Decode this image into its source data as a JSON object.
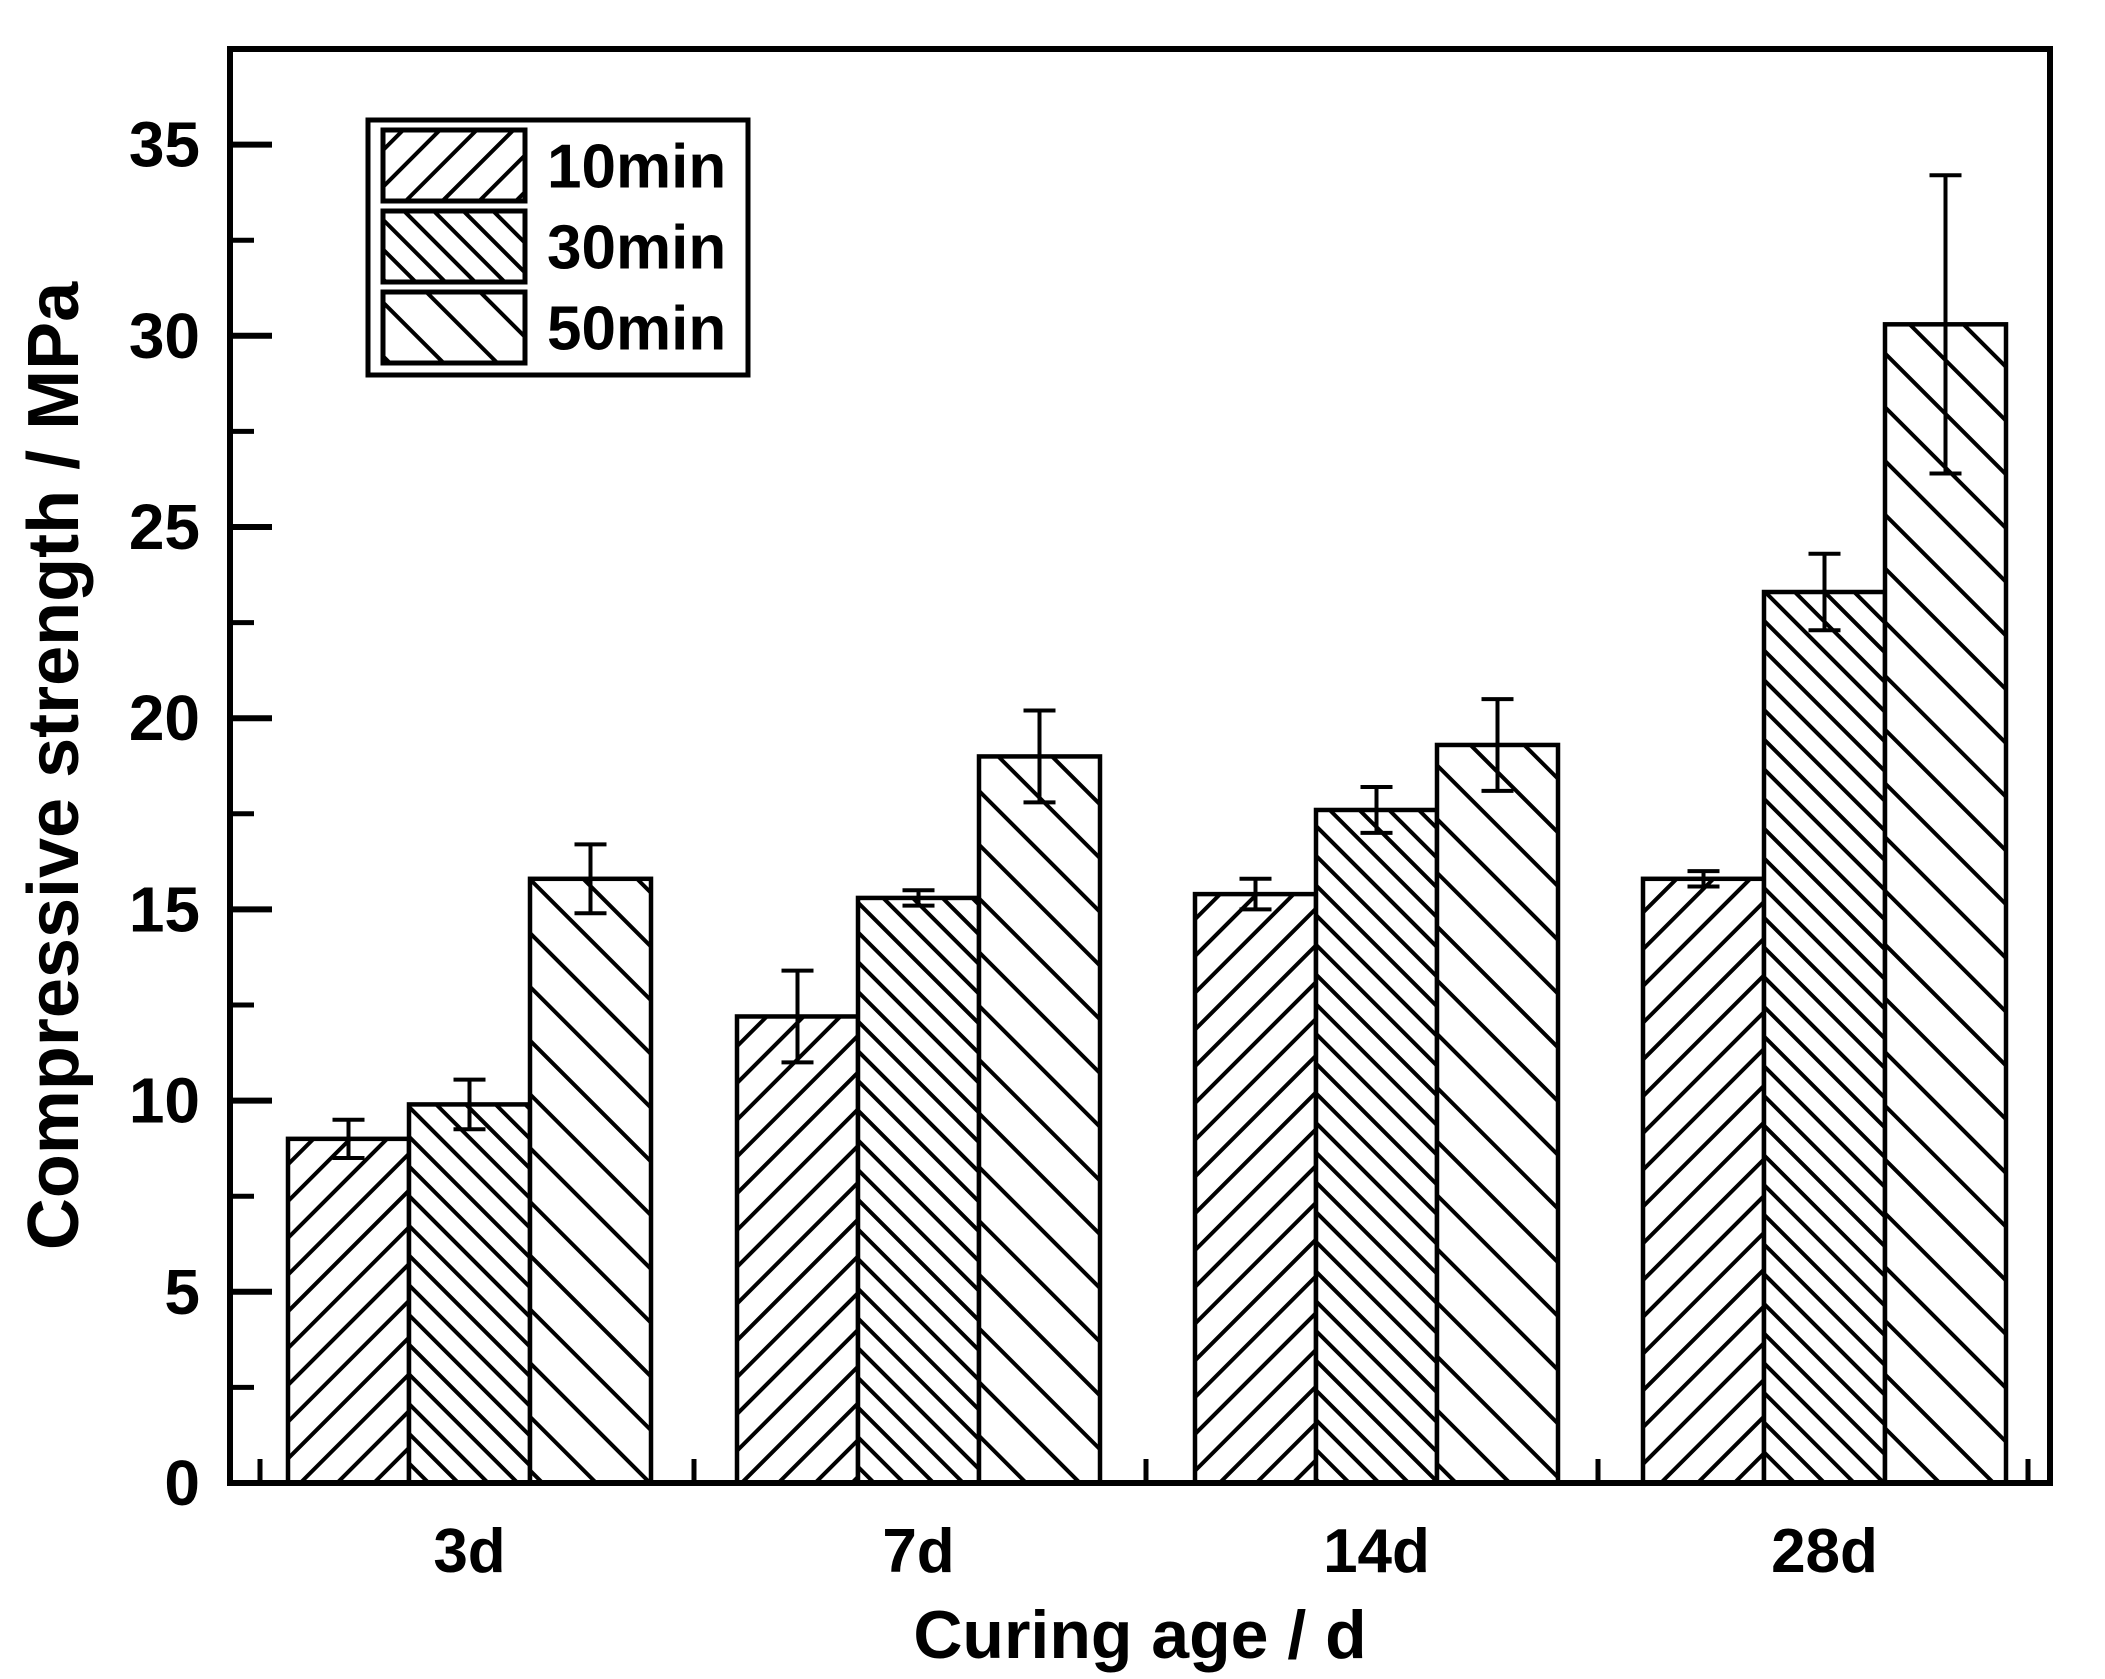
{
  "chart_data": {
    "type": "bar",
    "title": "",
    "xlabel": "Curing age / d",
    "ylabel": "Compressive strength / MPa",
    "categories": [
      "3d",
      "7d",
      "14d",
      "28d"
    ],
    "series": [
      {
        "name": "10min",
        "pattern": "diagonal-forward",
        "values": [
          9.0,
          12.2,
          15.4,
          15.8
        ],
        "errors": [
          0.5,
          1.2,
          0.4,
          0.2
        ]
      },
      {
        "name": "30min",
        "pattern": "diagonal-back-dense",
        "values": [
          9.9,
          15.3,
          17.6,
          23.3
        ],
        "errors": [
          0.65,
          0.2,
          0.6,
          1.0
        ]
      },
      {
        "name": "50min",
        "pattern": "diagonal-back-wide",
        "values": [
          15.8,
          19.0,
          19.3,
          30.3
        ],
        "errors": [
          0.9,
          1.2,
          1.2,
          3.9
        ]
      }
    ],
    "ylim": [
      0,
      37.5
    ],
    "yticks": {
      "major": 5,
      "minor": 2.5,
      "labels": [
        "0",
        "5",
        "10",
        "15",
        "20",
        "25",
        "30",
        "35"
      ]
    },
    "xticks_between_groups": true,
    "error_bars": "symmetric-with-caps",
    "legend": {
      "position": "top-left",
      "entries": [
        "10min",
        "30min",
        "50min"
      ]
    },
    "grid": false,
    "bar_fill_color": "#ffffff",
    "line_color": "#000000",
    "background_color": "#ffffff"
  }
}
